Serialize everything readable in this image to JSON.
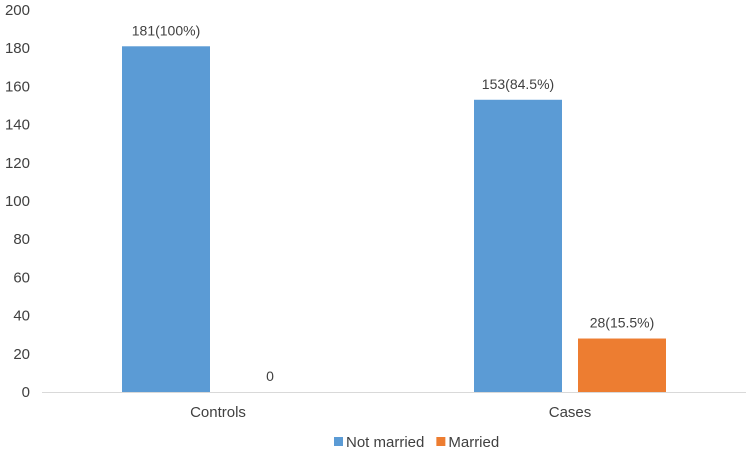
{
  "chart_data": {
    "type": "bar",
    "title": "",
    "xlabel": "",
    "ylabel": "",
    "categories": [
      "Controls",
      "Cases"
    ],
    "ylim": [
      0,
      200
    ],
    "yticks": [
      0,
      20,
      40,
      60,
      80,
      100,
      120,
      140,
      160,
      180,
      200
    ],
    "grid": false,
    "legend_position": "bottom",
    "series": [
      {
        "name": "Not married",
        "color": "#5B9BD5",
        "values": [
          181,
          153
        ],
        "data_labels": [
          "181(100%)",
          "153(84.5%)"
        ]
      },
      {
        "name": "Married",
        "color": "#ED7D31",
        "values": [
          0,
          28
        ],
        "data_labels": [
          "0",
          "28(15.5%)"
        ]
      }
    ]
  }
}
